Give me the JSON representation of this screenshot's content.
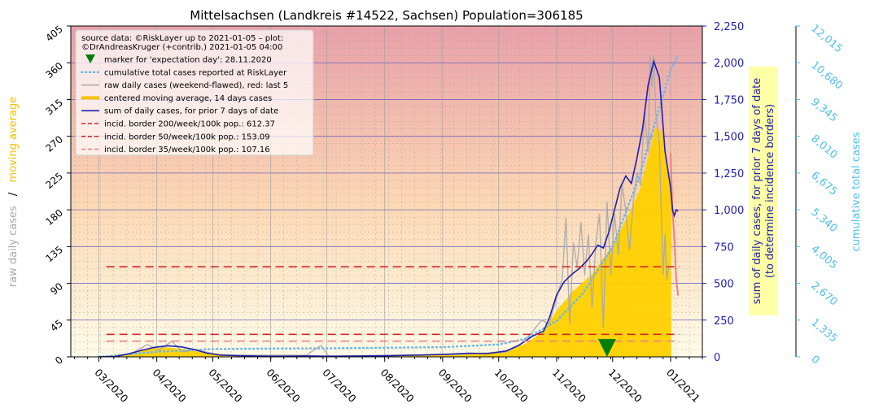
{
  "chart_data": {
    "type": "area",
    "title": "Mittelsachsen (Landkreis #14522, Sachsen) Population=306185",
    "legend": {
      "placement": "top-left",
      "source_line1": "source data: ©RiskLayer up to 2021-01-05 – plot:",
      "source_line2": "©DrAndreasKruger (+contrib.) 2021-01-05 04:00",
      "entries": [
        {
          "key": "marker",
          "label": "marker for 'expectation day': 28.11.2020",
          "color": "#008000"
        },
        {
          "key": "cumulative",
          "label": "cumulative total cases reported at RiskLayer",
          "color": "#6cb8ee"
        },
        {
          "key": "raw",
          "label": "raw daily cases (weekend-flawed), red: last 5",
          "color": "#aaaaaa"
        },
        {
          "key": "moving",
          "label": "centered moving average, 14 days cases",
          "color": "#f5c000"
        },
        {
          "key": "sum7",
          "label": "sum of daily cases, for prior 7 days of date",
          "color": "#2020b0"
        },
        {
          "key": "b200",
          "label": "incid. border 200/week/100k pop.: 612.37",
          "color": "#d62728"
        },
        {
          "key": "b50",
          "label": "incid. border 50/week/100k pop.: 153.09",
          "color": "#d62728"
        },
        {
          "key": "b35",
          "label": "incid. border 35/week/100k pop.: 107.16",
          "color": "#f08080"
        }
      ]
    },
    "axes": {
      "left": {
        "label_raw": "raw daily cases",
        "label_sep": "/",
        "label_avg": "moving average",
        "range": [
          0,
          405
        ],
        "ticks": [
          "0",
          "45",
          "90",
          "135",
          "180",
          "225",
          "270",
          "315",
          "360",
          "405"
        ]
      },
      "right1": {
        "label_line1": "sum of daily cases, for prior 7 days of date",
        "label_line2": "(to determine incidence borders)",
        "range": [
          0,
          2250
        ],
        "ticks": [
          "0",
          "250",
          "500",
          "750",
          "1,000",
          "1,250",
          "1,500",
          "1,750",
          "2,000",
          "2,250"
        ]
      },
      "right2": {
        "label": "cumulative total cases",
        "range": [
          0,
          12015
        ],
        "ticks": [
          "0",
          "1,335",
          "2,670",
          "4,005",
          "5,340",
          "6,675",
          "8,010",
          "9,345",
          "10,680",
          "12,015"
        ]
      },
      "x": {
        "range": [
          "2020-02-15",
          "2021-01-18"
        ],
        "ticks": [
          {
            "date": "2020-03-01",
            "label": "03/2020"
          },
          {
            "date": "2020-04-01",
            "label": "04/2020"
          },
          {
            "date": "2020-05-01",
            "label": "05/2020"
          },
          {
            "date": "2020-06-01",
            "label": "06/2020"
          },
          {
            "date": "2020-07-01",
            "label": "07/2020"
          },
          {
            "date": "2020-08-01",
            "label": "08/2020"
          },
          {
            "date": "2020-09-01",
            "label": "09/2020"
          },
          {
            "date": "2020-10-01",
            "label": "10/2020"
          },
          {
            "date": "2020-11-01",
            "label": "11/2020"
          },
          {
            "date": "2020-12-01",
            "label": "12/2020"
          },
          {
            "date": "2021-01-01",
            "label": "01/2021"
          }
        ]
      }
    },
    "grid": true,
    "background_gradient": {
      "top": "#e8a0a8",
      "middle": "#fdd9b5",
      "bottom": "#fffbe8"
    },
    "borders": [
      {
        "name": "200",
        "value": 612.37,
        "color": "#d62728",
        "dash": "long"
      },
      {
        "name": "50",
        "value": 153.09,
        "color": "#d62728",
        "dash": "long"
      },
      {
        "name": "35",
        "value": 107.16,
        "color": "#f08080",
        "dash": "long"
      }
    ],
    "expectation_marker": {
      "date": "2020-11-28",
      "value": 0,
      "color": "#008000"
    },
    "series": [
      {
        "key": "sum7",
        "axis": "right1",
        "color": "#2020b0",
        "points": [
          [
            "2020-03-01",
            0
          ],
          [
            "2020-03-10",
            3
          ],
          [
            "2020-03-17",
            20
          ],
          [
            "2020-03-24",
            45
          ],
          [
            "2020-03-31",
            65
          ],
          [
            "2020-04-07",
            75
          ],
          [
            "2020-04-14",
            68
          ],
          [
            "2020-04-21",
            50
          ],
          [
            "2020-04-28",
            25
          ],
          [
            "2020-05-05",
            12
          ],
          [
            "2020-05-15",
            8
          ],
          [
            "2020-05-25",
            5
          ],
          [
            "2020-06-05",
            4
          ],
          [
            "2020-06-20",
            6
          ],
          [
            "2020-07-05",
            4
          ],
          [
            "2020-07-20",
            6
          ],
          [
            "2020-08-05",
            8
          ],
          [
            "2020-08-20",
            12
          ],
          [
            "2020-09-05",
            18
          ],
          [
            "2020-09-15",
            25
          ],
          [
            "2020-09-25",
            22
          ],
          [
            "2020-10-05",
            40
          ],
          [
            "2020-10-12",
            80
          ],
          [
            "2020-10-19",
            140
          ],
          [
            "2020-10-25",
            175
          ],
          [
            "2020-10-28",
            260
          ],
          [
            "2020-11-01",
            420
          ],
          [
            "2020-11-05",
            510
          ],
          [
            "2020-11-09",
            560
          ],
          [
            "2020-11-13",
            600
          ],
          [
            "2020-11-17",
            650
          ],
          [
            "2020-11-20",
            700
          ],
          [
            "2020-11-23",
            760
          ],
          [
            "2020-11-26",
            740
          ],
          [
            "2020-11-29",
            850
          ],
          [
            "2020-12-02",
            1000
          ],
          [
            "2020-12-05",
            1150
          ],
          [
            "2020-12-08",
            1230
          ],
          [
            "2020-12-11",
            1180
          ],
          [
            "2020-12-14",
            1350
          ],
          [
            "2020-12-17",
            1550
          ],
          [
            "2020-12-20",
            1850
          ],
          [
            "2020-12-23",
            2010
          ],
          [
            "2020-12-26",
            1900
          ],
          [
            "2020-12-29",
            1400
          ],
          [
            "2021-01-01",
            1150
          ],
          [
            "2021-01-02",
            1000
          ],
          [
            "2021-01-03",
            960
          ],
          [
            "2021-01-04",
            1000
          ],
          [
            "2021-01-05",
            990
          ]
        ]
      },
      {
        "key": "moving",
        "axis": "left",
        "color": "#ffd000",
        "points": [
          [
            "2020-03-01",
            0
          ],
          [
            "2020-03-15",
            3
          ],
          [
            "2020-03-25",
            8
          ],
          [
            "2020-04-05",
            11
          ],
          [
            "2020-04-15",
            9
          ],
          [
            "2020-04-25",
            5
          ],
          [
            "2020-05-10",
            1.5
          ],
          [
            "2020-06-01",
            0.8
          ],
          [
            "2020-07-01",
            0.7
          ],
          [
            "2020-08-01",
            1
          ],
          [
            "2020-09-01",
            2.5
          ],
          [
            "2020-09-20",
            3.5
          ],
          [
            "2020-10-05",
            7
          ],
          [
            "2020-10-15",
            15
          ],
          [
            "2020-10-25",
            30
          ],
          [
            "2020-11-01",
            55
          ],
          [
            "2020-11-10",
            80
          ],
          [
            "2020-11-20",
            100
          ],
          [
            "2020-12-01",
            135
          ],
          [
            "2020-12-10",
            175
          ],
          [
            "2020-12-16",
            205
          ],
          [
            "2020-12-21",
            250
          ],
          [
            "2020-12-24",
            280
          ],
          [
            "2020-12-27",
            275
          ],
          [
            "2020-12-30",
            235
          ],
          [
            "2021-01-01",
            200
          ],
          [
            "2021-01-01",
            0
          ]
        ]
      },
      {
        "key": "raw",
        "axis": "left",
        "color": "#a8a8a8",
        "points": [
          [
            "2020-03-10",
            0
          ],
          [
            "2020-03-20",
            6
          ],
          [
            "2020-03-27",
            15
          ],
          [
            "2020-04-02",
            8
          ],
          [
            "2020-04-09",
            19
          ],
          [
            "2020-04-15",
            6
          ],
          [
            "2020-04-22",
            9
          ],
          [
            "2020-05-05",
            2
          ],
          [
            "2020-06-20",
            2
          ],
          [
            "2020-06-28",
            14
          ],
          [
            "2020-07-02",
            1
          ],
          [
            "2020-09-10",
            3
          ],
          [
            "2020-10-05",
            6
          ],
          [
            "2020-10-12",
            14
          ],
          [
            "2020-10-18",
            28
          ],
          [
            "2020-10-24",
            45
          ],
          [
            "2020-10-28",
            40
          ],
          [
            "2020-11-02",
            80
          ],
          [
            "2020-11-04",
            95
          ],
          [
            "2020-11-06",
            170
          ],
          [
            "2020-11-08",
            40
          ],
          [
            "2020-11-10",
            140
          ],
          [
            "2020-11-12",
            110
          ],
          [
            "2020-11-14",
            165
          ],
          [
            "2020-11-16",
            100
          ],
          [
            "2020-11-18",
            150
          ],
          [
            "2020-11-20",
            60
          ],
          [
            "2020-11-22",
            140
          ],
          [
            "2020-11-24",
            175
          ],
          [
            "2020-11-26",
            35
          ],
          [
            "2020-11-28",
            190
          ],
          [
            "2020-11-30",
            100
          ],
          [
            "2020-12-02",
            175
          ],
          [
            "2020-12-04",
            125
          ],
          [
            "2020-12-06",
            210
          ],
          [
            "2020-12-08",
            180
          ],
          [
            "2020-12-10",
            130
          ],
          [
            "2020-12-12",
            190
          ],
          [
            "2020-12-14",
            225
          ],
          [
            "2020-12-16",
            210
          ],
          [
            "2020-12-18",
            300
          ],
          [
            "2020-12-20",
            250
          ],
          [
            "2020-12-21",
            370
          ],
          [
            "2020-12-22",
            330
          ],
          [
            "2020-12-23",
            370
          ],
          [
            "2020-12-24",
            300
          ],
          [
            "2020-12-26",
            260
          ],
          [
            "2020-12-27",
            180
          ],
          [
            "2020-12-28",
            100
          ],
          [
            "2020-12-29",
            150
          ],
          [
            "2020-12-30",
            95
          ],
          [
            "2020-12-31",
            110
          ]
        ]
      },
      {
        "key": "raw_last5",
        "axis": "left",
        "color": "#f08080",
        "points": [
          [
            "2021-01-01",
            250
          ],
          [
            "2021-01-02",
            180
          ],
          [
            "2021-01-03",
            145
          ],
          [
            "2021-01-04",
            95
          ],
          [
            "2021-01-05",
            75
          ]
        ]
      },
      {
        "key": "cumulative",
        "axis": "right2",
        "color": "#6cb8ee",
        "points": [
          [
            "2020-03-01",
            0
          ],
          [
            "2020-03-31",
            180
          ],
          [
            "2020-04-30",
            280
          ],
          [
            "2020-06-01",
            300
          ],
          [
            "2020-07-01",
            310
          ],
          [
            "2020-08-01",
            330
          ],
          [
            "2020-09-01",
            350
          ],
          [
            "2020-10-01",
            450
          ],
          [
            "2020-10-15",
            650
          ],
          [
            "2020-11-01",
            1300
          ],
          [
            "2020-11-15",
            2300
          ],
          [
            "2020-12-01",
            4000
          ],
          [
            "2020-12-15",
            6500
          ],
          [
            "2021-01-01",
            10400
          ],
          [
            "2021-01-05",
            10950
          ]
        ]
      }
    ]
  }
}
